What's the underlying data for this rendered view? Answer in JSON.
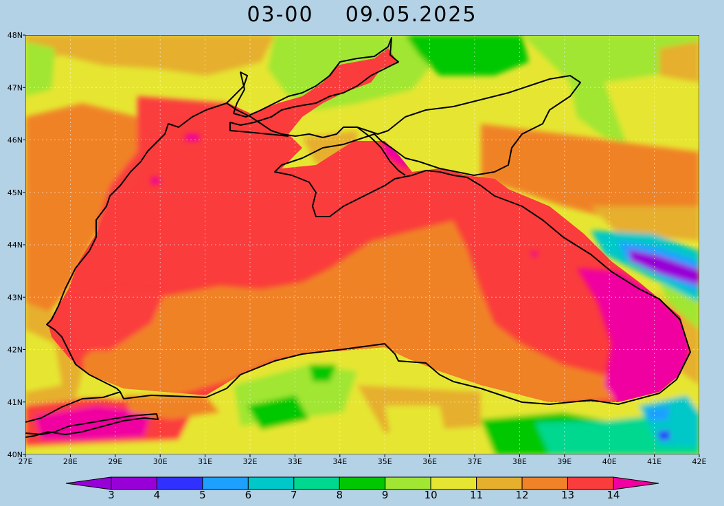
{
  "title": {
    "time": "03-00",
    "date": "09.05.2025"
  },
  "map": {
    "region": "Black Sea",
    "variable": "sea surface temperature",
    "lon_range": [
      27,
      42
    ],
    "lat_range": [
      40,
      48
    ],
    "gridlines": "dotted",
    "lon_ticks": [
      "27E",
      "28E",
      "29E",
      "30E",
      "31E",
      "32E",
      "33E",
      "34E",
      "35E",
      "36E",
      "37E",
      "38E",
      "39E",
      "40E",
      "41E",
      "42E"
    ],
    "lat_ticks": [
      "40N",
      "41N",
      "42N",
      "43N",
      "44N",
      "45N",
      "46N",
      "47N",
      "48N"
    ]
  },
  "colorbar": {
    "labels": [
      "3",
      "4",
      "5",
      "6",
      "7",
      "8",
      "9",
      "10",
      "11",
      "12",
      "13",
      "14"
    ],
    "colors": [
      "#9800d8",
      "#3030ff",
      "#1ea0ff",
      "#00c8c8",
      "#00d890",
      "#00c800",
      "#a0e632",
      "#e6e632",
      "#e6af2d",
      "#f08228",
      "#fa3c3c",
      "#f000a0"
    ],
    "extend_low_color": "#9800d8",
    "extend_high_color": "#f000a0"
  }
}
